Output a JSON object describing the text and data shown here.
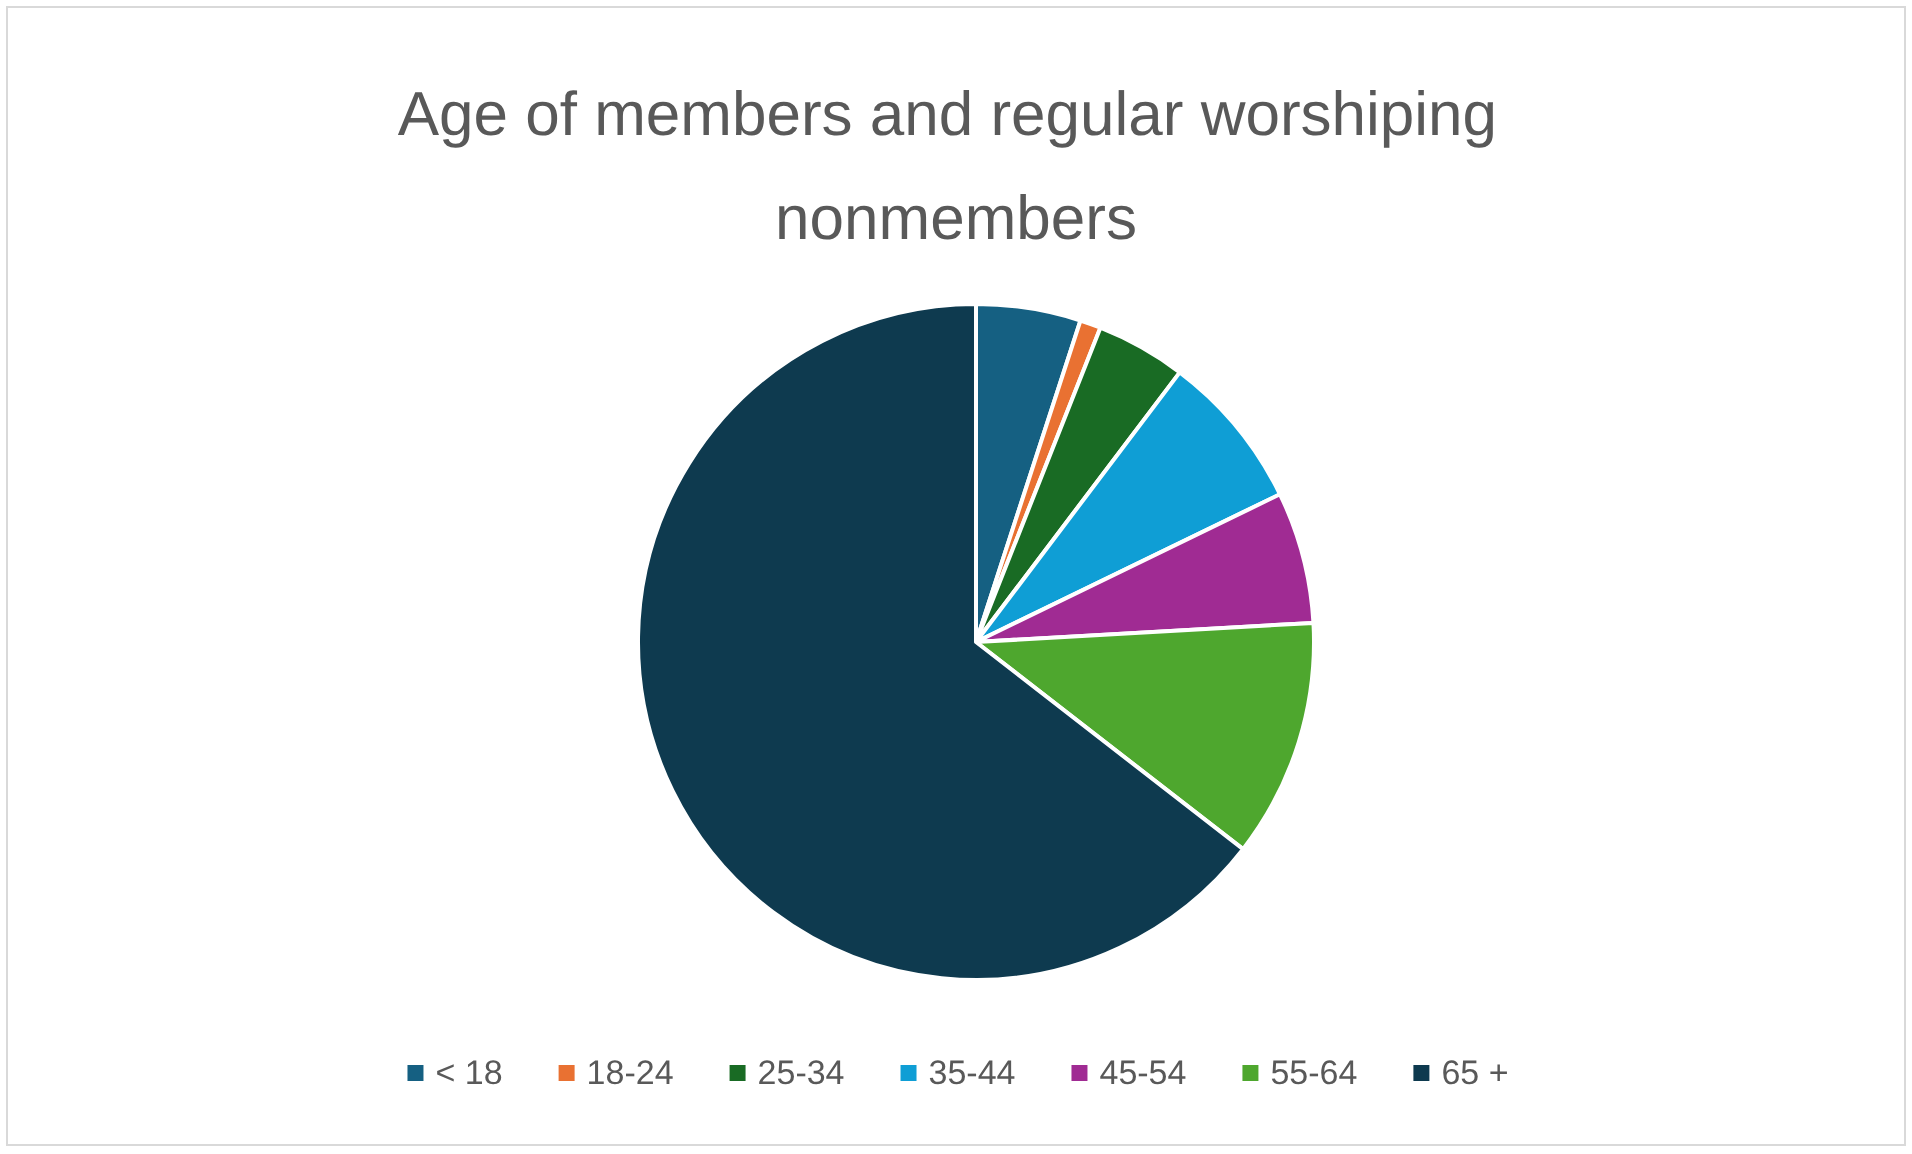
{
  "chart_data": {
    "type": "pie",
    "title": "Age of members and regular worshiping nonmembers",
    "categories": [
      "< 18",
      "18-24",
      "25-34",
      "35-44",
      "45-54",
      "55-64",
      "65 +"
    ],
    "values": [
      5,
      1,
      4.3,
      7.5,
      6.3,
      11.4,
      64.5
    ],
    "colors": [
      "#156082",
      "#e97132",
      "#196b24",
      "#0f9ed5",
      "#a02b93",
      "#4ea72e",
      "#0e3a4f"
    ],
    "legend": "bottom"
  }
}
